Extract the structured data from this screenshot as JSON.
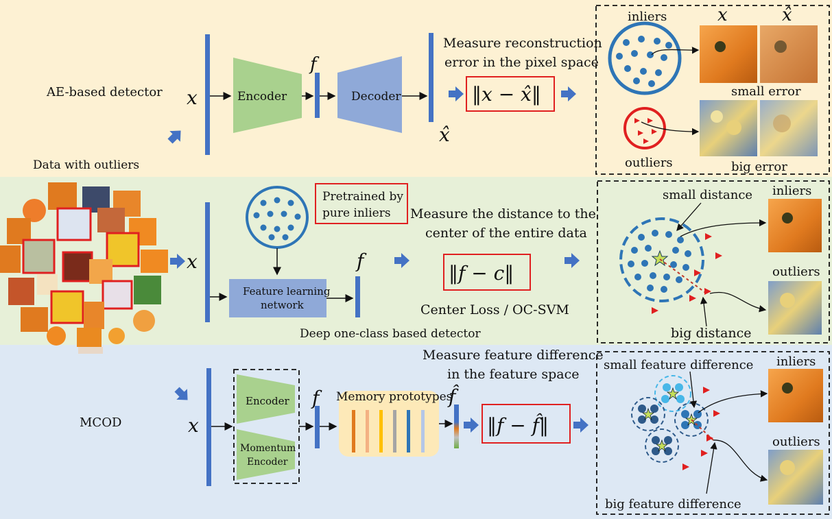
{
  "colors": {
    "band_top": "#fdf1d3",
    "band_mid": "#e7f0d8",
    "band_bot": "#dde8f4",
    "bar_blue": "#4472c4",
    "encoder_green": "#a9d18e",
    "decoder_blue": "#8fa9d8",
    "red": "#e02020",
    "dot_blue": "#2e75b6",
    "light_dot": "#47b7e8",
    "memory_bg": "#fde9b8"
  },
  "row1": {
    "title": "AE-based detector",
    "data_label": "Data with outliers",
    "x_label": "x",
    "encoder": "Encoder",
    "f_label": "f",
    "decoder": "Decoder",
    "xhat_label": "x̂",
    "measure_line1": "Measure reconstruction",
    "measure_line2": "error in the pixel space",
    "formula": "‖x − x̂‖",
    "right": {
      "inliers": "inliers",
      "outliers": "outliers",
      "x_header": "x",
      "xhat_header": "x̂",
      "small_error": "small  error",
      "big_error": "big  error"
    }
  },
  "row2": {
    "x_label": "x",
    "pretrained_line1": "Pretrained by",
    "pretrained_line2": "pure inliers",
    "feature_net_line1": "Feature learning",
    "feature_net_line2": "network",
    "f_label": "f",
    "measure_line1": "Measure the distance to the",
    "measure_line2": "center of  the entire data",
    "formula": "‖f − c‖",
    "loss": "Center Loss / OC-SVM",
    "caption": "Deep one-class based detector",
    "right": {
      "small_distance": "small distance",
      "big_distance": "big distance",
      "inliers": "inliers",
      "outliers": "outliers"
    }
  },
  "row3": {
    "title": "MCOD",
    "x_label": "x",
    "encoder": "Encoder",
    "momentum_line1": "Momentum",
    "momentum_line2": "Encoder",
    "f_label": "f",
    "memory_label": "Memory prototypes",
    "fhat_label": "f̂",
    "measure_line1": "Measure feature difference",
    "measure_line2": "in the feature space",
    "formula": "‖f − f̂‖",
    "right": {
      "small_feature": "small feature difference",
      "big_feature": "big feature difference",
      "inliers": "inliers",
      "outliers": "outliers"
    }
  }
}
